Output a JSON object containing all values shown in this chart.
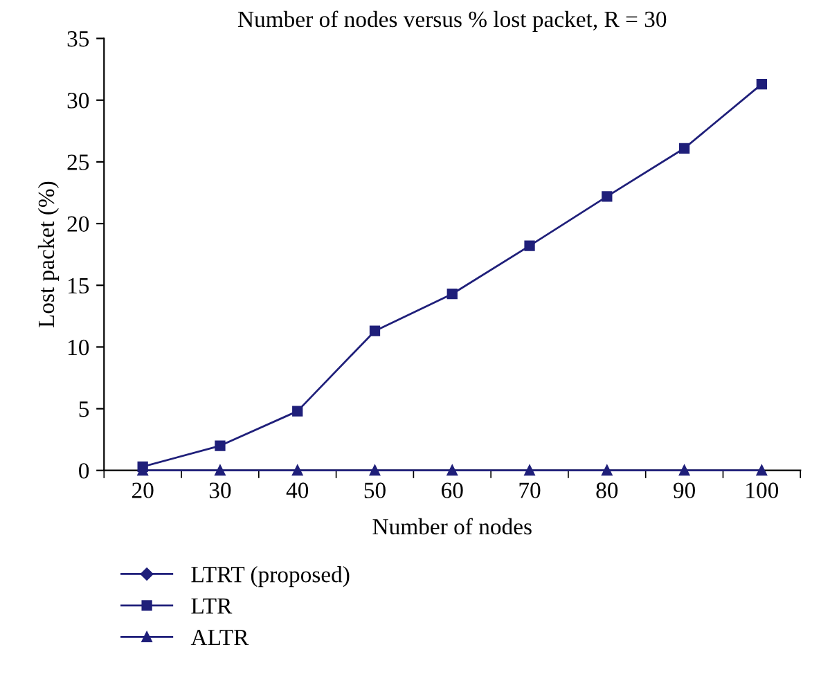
{
  "chart_data": {
    "type": "line",
    "title": "Number of nodes versus % lost packet, R = 30",
    "xlabel": "Number of nodes",
    "ylabel": "Lost packet (%)",
    "categories": [
      "20",
      "30",
      "40",
      "50",
      "60",
      "70",
      "80",
      "90",
      "100"
    ],
    "series": [
      {
        "name": "LTRT (proposed)",
        "color": "#1f1f7a",
        "marker": "diamond",
        "values": [
          null,
          null,
          null,
          null,
          null,
          null,
          null,
          null,
          null
        ]
      },
      {
        "name": "LTR",
        "color": "#1f1f7a",
        "marker": "square",
        "values": [
          0.3,
          2.0,
          4.8,
          11.3,
          14.3,
          18.2,
          22.2,
          26.1,
          31.3
        ]
      },
      {
        "name": "ALTR",
        "color": "#1f1f7a",
        "marker": "triangle",
        "values": [
          0,
          0,
          0,
          0,
          0,
          0,
          0,
          0,
          0
        ]
      }
    ],
    "ylim": [
      0,
      35
    ],
    "yticks": [
      0,
      5,
      10,
      15,
      20,
      25,
      30,
      35
    ],
    "grid": false,
    "legend": "bottom left",
    "line_style": "solid"
  }
}
